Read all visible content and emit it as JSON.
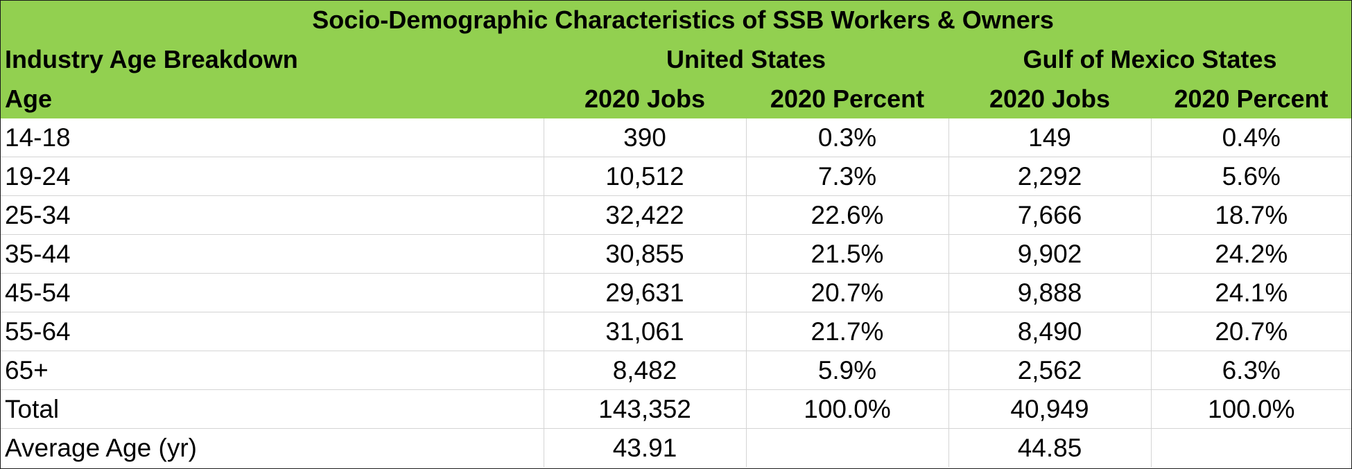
{
  "chart_data": {
    "type": "table",
    "title": "Socio-Demographic Characteristics of  SSB Workers & Owners",
    "section_label": "Industry Age Breakdown",
    "row_header": "Age",
    "groups": [
      "United States",
      "Gulf of Mexico States"
    ],
    "columns": [
      "2020 Jobs",
      "2020 Percent",
      "2020 Jobs",
      "2020 Percent"
    ],
    "rows": [
      {
        "label": "14-18",
        "cells": [
          "390",
          "0.3%",
          "149",
          "0.4%"
        ]
      },
      {
        "label": "19-24",
        "cells": [
          "10,512",
          "7.3%",
          "2,292",
          "5.6%"
        ]
      },
      {
        "label": "25-34",
        "cells": [
          "32,422",
          "22.6%",
          "7,666",
          "18.7%"
        ]
      },
      {
        "label": "35-44",
        "cells": [
          "30,855",
          "21.5%",
          "9,902",
          "24.2%"
        ]
      },
      {
        "label": "45-54",
        "cells": [
          "29,631",
          "20.7%",
          "9,888",
          "24.1%"
        ]
      },
      {
        "label": "55-64",
        "cells": [
          "31,061",
          "21.7%",
          "8,490",
          "20.7%"
        ]
      },
      {
        "label": "65+",
        "cells": [
          "8,482",
          "5.9%",
          "2,562",
          "6.3%"
        ]
      },
      {
        "label": "Total",
        "cells": [
          "143,352",
          "100.0%",
          "40,949",
          "100.0%"
        ]
      },
      {
        "label": "Average Age (yr)",
        "cells": [
          "43.91",
          "",
          "44.85",
          ""
        ]
      }
    ],
    "header_color": "#92d050"
  }
}
